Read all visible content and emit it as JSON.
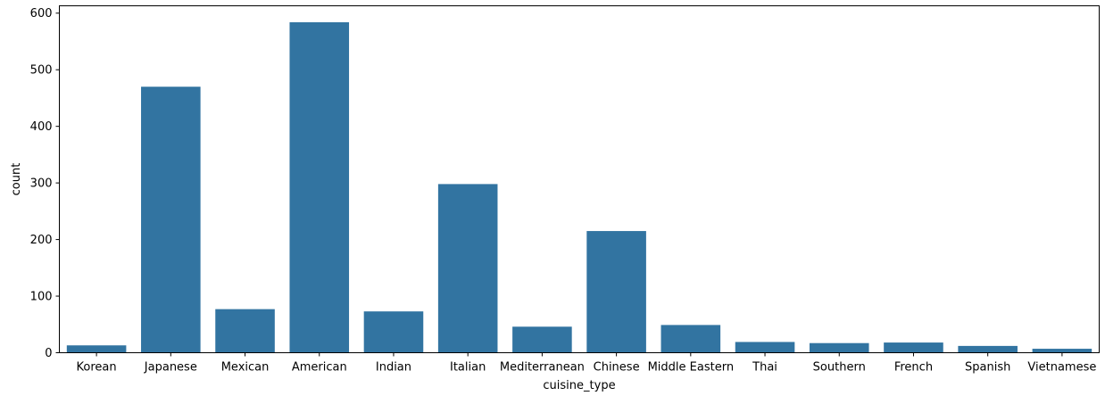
{
  "chart_data": {
    "type": "bar",
    "categories": [
      "Korean",
      "Japanese",
      "Mexican",
      "American",
      "Indian",
      "Italian",
      "Mediterranean",
      "Chinese",
      "Middle Eastern",
      "Thai",
      "Southern",
      "French",
      "Spanish",
      "Vietnamese"
    ],
    "values": [
      13,
      470,
      77,
      584,
      73,
      298,
      46,
      215,
      49,
      19,
      17,
      18,
      12,
      7
    ],
    "xlabel": "cuisine_type",
    "ylabel": "count",
    "ylim": [
      0,
      613
    ],
    "yticks": [
      0,
      100,
      200,
      300,
      400,
      500,
      600
    ],
    "grid": false,
    "bar_color": "#3274a1"
  }
}
